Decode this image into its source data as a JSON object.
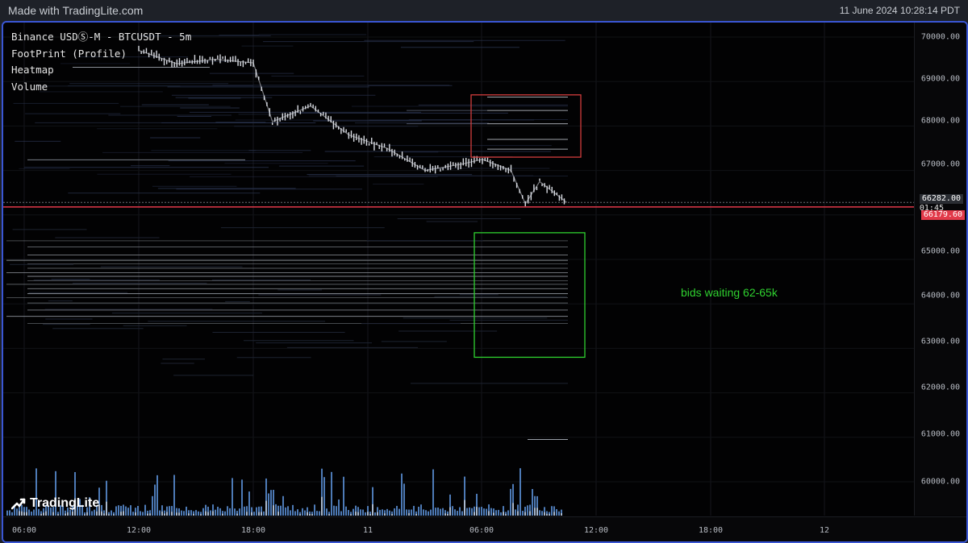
{
  "topbar": {
    "made_with": "Made with TradingLite.com",
    "timestamp": "11 June 2024 10:28:14 PDT"
  },
  "legend": {
    "symbol": "Binance USDⓈ-M - BTCUSDT - 5m",
    "layers": [
      "FootPrint (Profile)",
      "Heatmap",
      "Volume"
    ]
  },
  "annotation": {
    "text": "bids waiting 62-65k",
    "color": "#2fd12f"
  },
  "brand": {
    "name": "TradingLite"
  },
  "price_axis": {
    "ticks": [
      "70000.00",
      "69000.00",
      "68000.00",
      "67000.00",
      "65000.00",
      "64000.00",
      "63000.00",
      "62000.00",
      "61000.00",
      "60000.00"
    ],
    "last_price": "66282.00",
    "countdown": "01:45",
    "red_line_price": "66179.60"
  },
  "time_axis": {
    "ticks": [
      "06:00",
      "12:00",
      "18:00",
      "11",
      "06:00",
      "12:00",
      "18:00",
      "12"
    ]
  },
  "colors": {
    "frame_border": "#3a56d4",
    "background": "#020203",
    "red_line": "#e23a4a",
    "ask_box": "#d23c3c",
    "bid_box": "#2fd12f",
    "candles": "#d8dbe2",
    "volume": "#5b8fd6"
  },
  "chart_data": {
    "type": "candlestick",
    "series_desc": "BTCUSDT 5m price",
    "price_samples": [
      {
        "t": "10 Jun 12:00",
        "p": 69700
      },
      {
        "t": "10 Jun 14:00",
        "p": 69400
      },
      {
        "t": "10 Jun 16:00",
        "p": 69500
      },
      {
        "t": "10 Jun 18:00",
        "p": 69420
      },
      {
        "t": "10 Jun 19:00",
        "p": 68100
      },
      {
        "t": "10 Jun 21:00",
        "p": 68450
      },
      {
        "t": "10 Jun 23:00",
        "p": 67800
      },
      {
        "t": "11 Jun 01:00",
        "p": 67500
      },
      {
        "t": "11 Jun 03:00",
        "p": 67000
      },
      {
        "t": "11 Jun 05:00",
        "p": 67150
      },
      {
        "t": "11 Jun 06:00",
        "p": 67250
      },
      {
        "t": "11 Jun 07:30",
        "p": 67000
      },
      {
        "t": "11 Jun 08:15",
        "p": 66250
      },
      {
        "t": "11 Jun 09:00",
        "p": 66750
      },
      {
        "t": "11 Jun 10:25",
        "p": 66282
      }
    ],
    "ask_zone": [
      67300,
      68700
    ],
    "bid_zone": [
      62800,
      65600
    ],
    "red_line": 66179.6,
    "ylim": [
      59300,
      70400
    ]
  }
}
